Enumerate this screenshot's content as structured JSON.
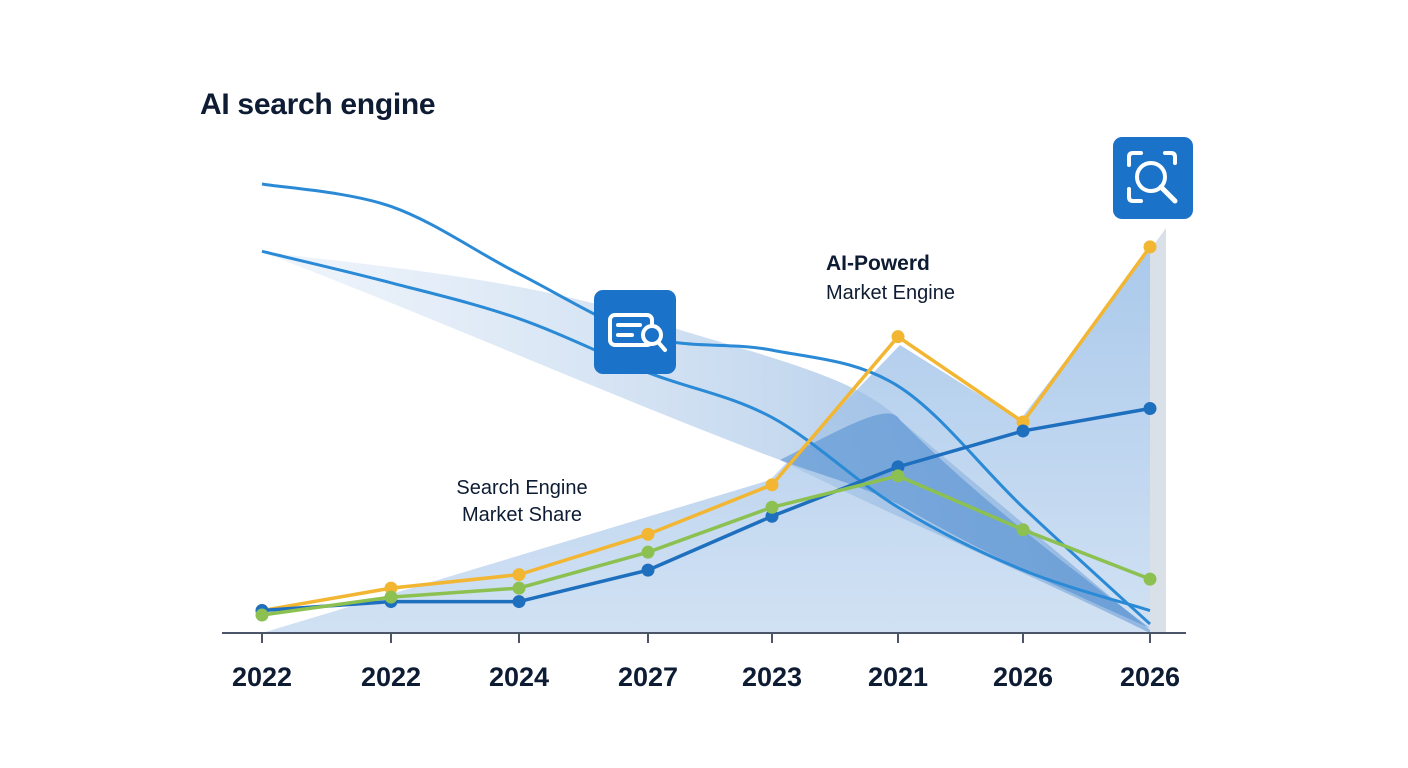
{
  "chart_data": {
    "type": "line",
    "title": "AI search engine",
    "xlabel": "",
    "ylabel": "",
    "categories": [
      "2022",
      "2022",
      "2024",
      "2027",
      "2023",
      "2021",
      "2026",
      "2026"
    ],
    "ylim": [
      0,
      100
    ],
    "grid": false,
    "legend": "none",
    "annotations": {
      "ai_powered_line1": "AI-Powerd",
      "ai_powered_line2": "Market Engine",
      "search_share_line1": "Search Engine",
      "search_share_line2": "Market Share"
    },
    "series": [
      {
        "color": "#f2b632",
        "style": "line-markers",
        "values": [
          5,
          10,
          13,
          22,
          33,
          66,
          47,
          86
        ]
      },
      {
        "color": "#1f6fbf",
        "style": "line-markers",
        "values": [
          5,
          7,
          7,
          14,
          26,
          37,
          45,
          50
        ]
      },
      {
        "color": "#8cc152",
        "style": "line-markers",
        "values": [
          4,
          8,
          10,
          18,
          28,
          35,
          23,
          12
        ]
      },
      {
        "color": "#2b8ad6",
        "style": "curve",
        "values": [
          100,
          95,
          80,
          66,
          63,
          55,
          28,
          2
        ]
      },
      {
        "color": "#2b8ad6",
        "style": "curve",
        "values": [
          85,
          78,
          70,
          58,
          48,
          28,
          14,
          5
        ]
      }
    ],
    "icons": [
      "chat-search-icon",
      "scan-search-icon"
    ],
    "colors": {
      "icon_tile": "#1a73c9",
      "area_light": "#c8daf0",
      "area_mid": "#8ab4e0",
      "area_dark": "#5a94d2",
      "axis": "#4a5568"
    }
  }
}
